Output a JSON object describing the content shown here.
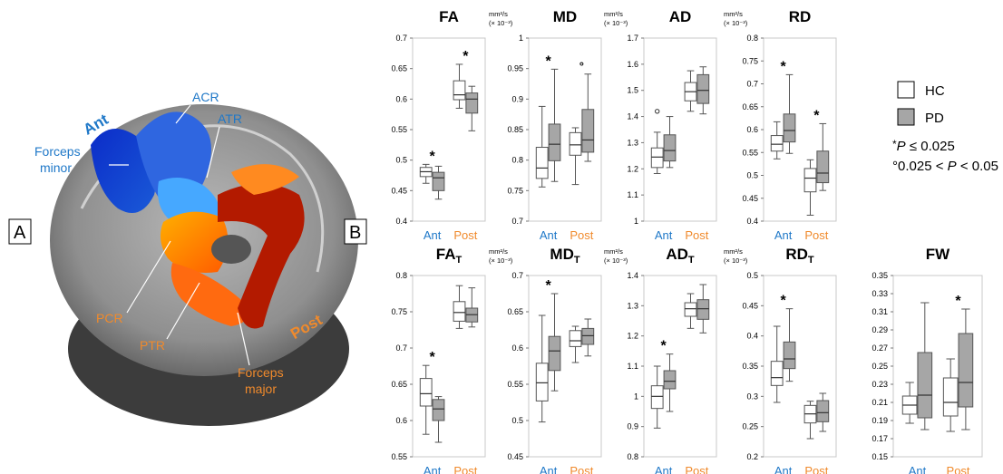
{
  "panel_labels": {
    "a": "A",
    "b": "B"
  },
  "brain": {
    "region_labels": {
      "acr": "ACR",
      "atr": "ATR",
      "ant": "Ant",
      "forceps_minor_1": "Forceps",
      "forceps_minor_2": "minor",
      "pcr": "PCR",
      "ptr": "PTR",
      "post": "Post",
      "forceps_major_1": "Forceps",
      "forceps_major_2": "major"
    }
  },
  "legend": {
    "hc": "HC",
    "pd": "PD",
    "sig1_prefix": "*",
    "sig1_p": "P",
    "sig1_rest": " ≤ 0.025",
    "sig2_prefix": "°0.025 < ",
    "sig2_p": "P",
    "sig2_rest": " < 0.05",
    "hc_color": "#ffffff",
    "pd_color": "#a6a6a6"
  },
  "chart_data": [
    {
      "type": "box",
      "title": "FA",
      "subscript": "",
      "unit": "",
      "categories": [
        "Ant",
        "Post"
      ],
      "yticks": [
        "0.4",
        "0.45",
        "0.5",
        "0.55",
        "0.6",
        "0.65",
        "0.7"
      ],
      "ylim": [
        0.4,
        0.7
      ],
      "groups": [
        {
          "hc": {
            "whislo": 0.462,
            "q1": 0.473,
            "med": 0.481,
            "q3": 0.488,
            "whishi": 0.493
          },
          "pd": {
            "whislo": 0.436,
            "q1": 0.45,
            "med": 0.471,
            "q3": 0.48,
            "whishi": 0.49
          },
          "marker": "*",
          "outliers": []
        },
        {
          "hc": {
            "whislo": 0.585,
            "q1": 0.599,
            "med": 0.607,
            "q3": 0.63,
            "whishi": 0.657
          },
          "pd": {
            "whislo": 0.548,
            "q1": 0.577,
            "med": 0.6,
            "q3": 0.61,
            "whishi": 0.621
          },
          "marker": "*",
          "outliers": []
        }
      ]
    },
    {
      "type": "box",
      "title": "MD",
      "subscript": "",
      "unit": "mm²/s|(× 10⁻³)",
      "categories": [
        "Ant",
        "Post"
      ],
      "yticks": [
        "0.7",
        "0.75",
        "0.8",
        "0.85",
        "0.9",
        "0.95",
        "1"
      ],
      "ylim": [
        0.7,
        1.0
      ],
      "groups": [
        {
          "hc": {
            "whislo": 0.756,
            "q1": 0.77,
            "med": 0.787,
            "q3": 0.821,
            "whishi": 0.888
          },
          "pd": {
            "whislo": 0.765,
            "q1": 0.799,
            "med": 0.826,
            "q3": 0.859,
            "whishi": 0.949
          },
          "marker": "*",
          "outliers": []
        },
        {
          "hc": {
            "whislo": 0.76,
            "q1": 0.808,
            "med": 0.825,
            "q3": 0.845,
            "whishi": 0.853
          },
          "pd": {
            "whislo": 0.798,
            "q1": 0.813,
            "med": 0.833,
            "q3": 0.883,
            "whishi": 0.941
          },
          "marker": "°",
          "outliers": []
        }
      ]
    },
    {
      "type": "box",
      "title": "AD",
      "subscript": "",
      "unit": "mm²/s|(× 10⁻³)",
      "categories": [
        "Ant",
        "Post"
      ],
      "yticks": [
        "1",
        "1.1",
        "1.2",
        "1.3",
        "1.4",
        "1.5",
        "1.6",
        "1.7"
      ],
      "ylim": [
        1.0,
        1.7
      ],
      "groups": [
        {
          "hc": {
            "whislo": 1.182,
            "q1": 1.205,
            "med": 1.245,
            "q3": 1.28,
            "whishi": 1.34
          },
          "pd": {
            "whislo": 1.205,
            "q1": 1.23,
            "med": 1.27,
            "q3": 1.33,
            "whishi": 1.4
          },
          "marker": "",
          "outliers": [
            {
              "series": "hc",
              "y": 1.42
            }
          ]
        },
        {
          "hc": {
            "whislo": 1.42,
            "q1": 1.46,
            "med": 1.495,
            "q3": 1.53,
            "whishi": 1.575
          },
          "pd": {
            "whislo": 1.41,
            "q1": 1.45,
            "med": 1.5,
            "q3": 1.56,
            "whishi": 1.59
          },
          "marker": "",
          "outliers": []
        }
      ]
    },
    {
      "type": "box",
      "title": "RD",
      "subscript": "",
      "unit": "mm²/s|(× 10⁻³)",
      "categories": [
        "Ant",
        "Post"
      ],
      "yticks": [
        "0.4",
        "0.45",
        "0.5",
        "0.55",
        "0.6",
        "0.65",
        "0.7",
        "0.75",
        "0.8"
      ],
      "ylim": [
        0.4,
        0.8
      ],
      "groups": [
        {
          "hc": {
            "whislo": 0.536,
            "q1": 0.553,
            "med": 0.568,
            "q3": 0.587,
            "whishi": 0.617
          },
          "pd": {
            "whislo": 0.548,
            "q1": 0.573,
            "med": 0.598,
            "q3": 0.634,
            "whishi": 0.72
          },
          "marker": "*",
          "outliers": []
        },
        {
          "hc": {
            "whislo": 0.413,
            "q1": 0.464,
            "med": 0.494,
            "q3": 0.515,
            "whishi": 0.534
          },
          "pd": {
            "whislo": 0.467,
            "q1": 0.484,
            "med": 0.505,
            "q3": 0.553,
            "whishi": 0.613
          },
          "marker": "*",
          "outliers": []
        }
      ]
    },
    {
      "type": "box",
      "title": "FA",
      "subscript": "T",
      "unit": "",
      "categories": [
        "Ant",
        "Post"
      ],
      "yticks": [
        "0.55",
        "0.6",
        "0.65",
        "0.7",
        "0.75",
        "0.8"
      ],
      "ylim": [
        0.55,
        0.8
      ],
      "groups": [
        {
          "hc": {
            "whislo": 0.581,
            "q1": 0.62,
            "med": 0.637,
            "q3": 0.658,
            "whishi": 0.676
          },
          "pd": {
            "whislo": 0.57,
            "q1": 0.6,
            "med": 0.616,
            "q3": 0.629,
            "whishi": 0.633
          },
          "marker": "*",
          "outliers": []
        },
        {
          "hc": {
            "whislo": 0.727,
            "q1": 0.737,
            "med": 0.749,
            "q3": 0.764,
            "whishi": 0.786
          },
          "pd": {
            "whislo": 0.729,
            "q1": 0.736,
            "med": 0.746,
            "q3": 0.755,
            "whishi": 0.783
          },
          "marker": "",
          "outliers": []
        }
      ]
    },
    {
      "type": "box",
      "title": "MD",
      "subscript": "T",
      "unit": "mm²/s|(× 10⁻³)",
      "categories": [
        "Ant",
        "Post"
      ],
      "yticks": [
        "0.45",
        "0.5",
        "0.55",
        "0.6",
        "0.65",
        "0.7"
      ],
      "ylim": [
        0.45,
        0.7
      ],
      "groups": [
        {
          "hc": {
            "whislo": 0.498,
            "q1": 0.527,
            "med": 0.552,
            "q3": 0.579,
            "whishi": 0.645
          },
          "pd": {
            "whislo": 0.541,
            "q1": 0.569,
            "med": 0.596,
            "q3": 0.616,
            "whishi": 0.675
          },
          "marker": "*",
          "outliers": []
        },
        {
          "hc": {
            "whislo": 0.58,
            "q1": 0.602,
            "med": 0.61,
            "q3": 0.624,
            "whishi": 0.63
          },
          "pd": {
            "whislo": 0.589,
            "q1": 0.605,
            "med": 0.617,
            "q3": 0.627,
            "whishi": 0.64
          },
          "marker": "",
          "outliers": []
        }
      ]
    },
    {
      "type": "box",
      "title": "AD",
      "subscript": "T",
      "unit": "mm²/s|(× 10⁻³)",
      "categories": [
        "Ant",
        "Post"
      ],
      "yticks": [
        "0.8",
        "0.9",
        "1",
        "1.1",
        "1.2",
        "1.3",
        "1.4"
      ],
      "ylim": [
        0.8,
        1.4
      ],
      "groups": [
        {
          "hc": {
            "whislo": 0.895,
            "q1": 0.96,
            "med": 1.0,
            "q3": 1.035,
            "whishi": 1.1
          },
          "pd": {
            "whislo": 0.95,
            "q1": 1.025,
            "med": 1.05,
            "q3": 1.085,
            "whishi": 1.14
          },
          "marker": "*",
          "outliers": []
        },
        {
          "hc": {
            "whislo": 1.225,
            "q1": 1.265,
            "med": 1.29,
            "q3": 1.31,
            "whishi": 1.34
          },
          "pd": {
            "whislo": 1.21,
            "q1": 1.255,
            "med": 1.29,
            "q3": 1.32,
            "whishi": 1.37
          },
          "marker": "",
          "outliers": []
        }
      ]
    },
    {
      "type": "box",
      "title": "RD",
      "subscript": "T",
      "unit": "mm²/s|(× 10⁻³)",
      "categories": [
        "Ant",
        "Post"
      ],
      "yticks": [
        "0.2",
        "0.25",
        "0.3",
        "0.35",
        "0.4",
        "0.45",
        "0.5"
      ],
      "ylim": [
        0.2,
        0.5
      ],
      "groups": [
        {
          "hc": {
            "whislo": 0.29,
            "q1": 0.318,
            "med": 0.331,
            "q3": 0.358,
            "whishi": 0.416
          },
          "pd": {
            "whislo": 0.325,
            "q1": 0.346,
            "med": 0.362,
            "q3": 0.39,
            "whishi": 0.445
          },
          "marker": "*",
          "outliers": []
        },
        {
          "hc": {
            "whislo": 0.23,
            "q1": 0.256,
            "med": 0.271,
            "q3": 0.285,
            "whishi": 0.292
          },
          "pd": {
            "whislo": 0.242,
            "q1": 0.258,
            "med": 0.273,
            "q3": 0.293,
            "whishi": 0.305
          },
          "marker": "",
          "outliers": []
        }
      ]
    },
    {
      "type": "box",
      "title": "FW",
      "subscript": "",
      "unit": "",
      "categories": [
        "Ant",
        "Post"
      ],
      "yticks": [
        "0.15",
        "0.17",
        "0.19",
        "0.21",
        "0.23",
        "0.25",
        "0.27",
        "0.29",
        "0.31",
        "0.33",
        "0.35"
      ],
      "ylim": [
        0.15,
        0.35
      ],
      "groups": [
        {
          "hc": {
            "whislo": 0.187,
            "q1": 0.197,
            "med": 0.207,
            "q3": 0.217,
            "whishi": 0.232
          },
          "pd": {
            "whislo": 0.18,
            "q1": 0.193,
            "med": 0.218,
            "q3": 0.265,
            "whishi": 0.32
          },
          "marker": "",
          "outliers": []
        },
        {
          "hc": {
            "whislo": 0.178,
            "q1": 0.195,
            "med": 0.21,
            "q3": 0.237,
            "whishi": 0.258
          },
          "pd": {
            "whislo": 0.18,
            "q1": 0.205,
            "med": 0.232,
            "q3": 0.286,
            "whishi": 0.313
          },
          "marker": "*",
          "outliers": []
        }
      ]
    }
  ]
}
